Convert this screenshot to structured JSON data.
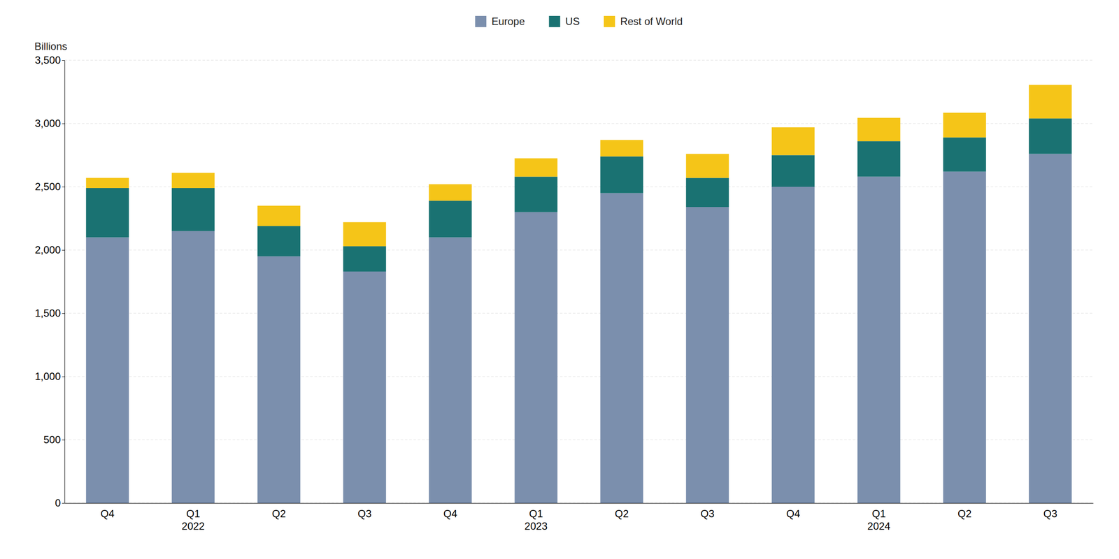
{
  "chart_data": {
    "type": "bar",
    "stacked": true,
    "grid": true,
    "legend": "top",
    "y_label": "Billions",
    "categories": [
      "Q4",
      "Q1\n2022",
      "Q2",
      "Q3",
      "Q4",
      "Q1\n2023",
      "Q2",
      "Q3",
      "Q4",
      "Q1\n2024",
      "Q2",
      "Q3"
    ],
    "series": [
      {
        "name": "Europe",
        "color": "#7b8fad",
        "values": [
          2100,
          2150,
          1950,
          1830,
          2100,
          2300,
          2450,
          2340,
          2500,
          2580,
          2620,
          2760
        ]
      },
      {
        "name": "US",
        "color": "#1a7272",
        "values": [
          390,
          340,
          240,
          200,
          290,
          280,
          290,
          230,
          250,
          280,
          270,
          280
        ]
      },
      {
        "name": "Rest of World",
        "color": "#f5c518",
        "values": [
          80,
          120,
          160,
          190,
          130,
          145,
          130,
          190,
          220,
          185,
          195,
          265
        ]
      }
    ],
    "ylim": [
      0,
      3500
    ],
    "yticks": [
      0,
      500,
      {
        "value": 1000,
        "label": "1,000"
      },
      {
        "value": 1500,
        "label": "1,500"
      },
      {
        "value": 2000,
        "label": "2,000"
      },
      {
        "value": 2500,
        "label": "2,500"
      },
      {
        "value": 3000,
        "label": "3,000"
      },
      {
        "value": 3500,
        "label": "3,500"
      }
    ]
  }
}
